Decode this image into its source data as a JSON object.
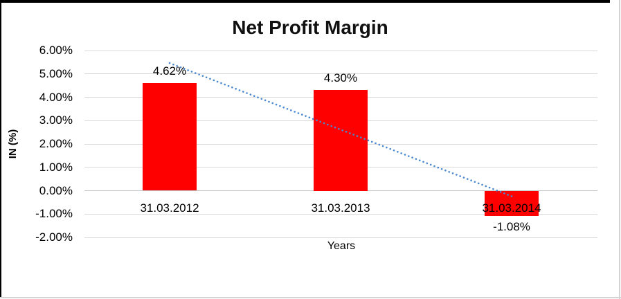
{
  "chart_data": {
    "type": "bar",
    "title": "Net Profit Margin",
    "categories": [
      "31.03.2012",
      "31.03.2013",
      "31.03.2014"
    ],
    "series": [
      {
        "name": "Net Profit Margin",
        "values": [
          4.62,
          4.3,
          -1.08
        ]
      }
    ],
    "value_labels": [
      "4.62%",
      "4.30%",
      "-1.08%"
    ],
    "xlabel": "Years",
    "ylabel": "IN (%)",
    "ylim": [
      -2,
      6
    ],
    "yticks": {
      "values": [
        6,
        5,
        4,
        3,
        2,
        1,
        0,
        -1,
        -2
      ],
      "labels": [
        "6.00%",
        "5.00%",
        "4.00%",
        "3.00%",
        "2.00%",
        "1.00%",
        "0.00%",
        "-1.00%",
        "-2.00%"
      ]
    },
    "grid": true,
    "legend_position": "none",
    "bar_color": "#ff0000",
    "trendline": {
      "type": "linear",
      "style": "dotted",
      "color": "#4a89d0"
    }
  }
}
